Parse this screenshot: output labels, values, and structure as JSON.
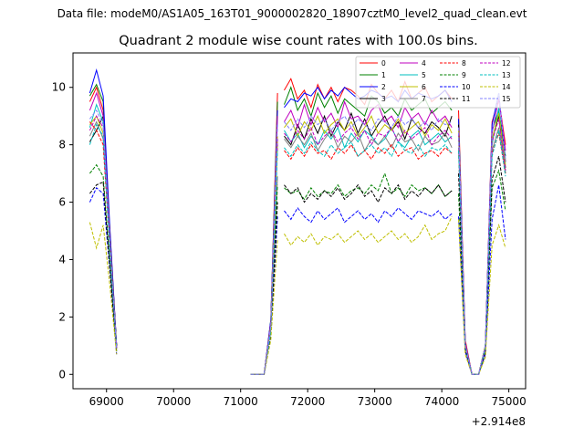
{
  "chart_data": {
    "type": "line",
    "suptitle": "Data file: modeM0/AS1A05_163T01_9000002820_18907cztM0_level2_quad_clean.evt",
    "title": "Quadrant 2 module wise count rates with 100.0s bins.",
    "xlabel": "",
    "ylabel": "",
    "x_offset_label": "+2.914e8",
    "xlim": [
      68500,
      75250
    ],
    "ylim": [
      -0.5,
      11.2
    ],
    "xticks": [
      69000,
      70000,
      71000,
      72000,
      73000,
      74000,
      75000
    ],
    "yticks": [
      0,
      2,
      4,
      6,
      8,
      10
    ],
    "grid": false,
    "legend_position": "top-right",
    "segments": [
      {
        "start": 68750,
        "step": 100,
        "count": 5
      },
      {
        "start": 71150,
        "step": 100,
        "count": 5
      },
      {
        "start": 71650,
        "step": 100,
        "count": 26
      },
      {
        "start": 74250,
        "step": 100,
        "count": 8
      }
    ],
    "series": [
      {
        "name": "0",
        "color": "#ff0000",
        "dash": "solid",
        "segments": [
          [
            9.5,
            10.0,
            9.2,
            5.0,
            1.0
          ],
          [
            0.0,
            0.0,
            0.0,
            1.8,
            9.8
          ],
          [
            9.9,
            10.3,
            9.6,
            9.9,
            9.3,
            10.1,
            9.6,
            10.0,
            9.5,
            10.0,
            9.9,
            9.7,
            9.4,
            10.1,
            9.8,
            9.6,
            9.9,
            9.5,
            10.2,
            9.6,
            9.8,
            10.0,
            9.5,
            9.7,
            9.9,
            9.6
          ],
          [
            9.2,
            1.2,
            0.0,
            0.0,
            1.0,
            8.8,
            9.6,
            8.0
          ]
        ]
      },
      {
        "name": "1",
        "color": "#008000",
        "dash": "solid",
        "segments": [
          [
            9.7,
            10.1,
            9.5,
            4.9,
            1.0
          ],
          [
            0.0,
            0.0,
            0.0,
            1.9,
            9.5
          ],
          [
            9.4,
            10.0,
            9.2,
            9.6,
            9.0,
            9.8,
            9.3,
            9.7,
            9.1,
            9.6,
            9.4,
            9.2,
            9.0,
            9.7,
            9.5,
            9.1,
            9.3,
            9.0,
            9.6,
            9.2,
            9.4,
            9.6,
            9.1,
            9.3,
            9.5,
            9.2
          ],
          [
            8.9,
            1.1,
            0.0,
            0.0,
            1.0,
            8.5,
            9.2,
            7.6
          ]
        ]
      },
      {
        "name": "2",
        "color": "#0000ff",
        "dash": "solid",
        "segments": [
          [
            9.8,
            10.6,
            9.7,
            5.1,
            1.0
          ],
          [
            0.0,
            0.0,
            0.0,
            1.9,
            9.2
          ],
          [
            9.3,
            9.6,
            9.5,
            9.8,
            9.7,
            10.0,
            9.6,
            9.9,
            9.7,
            10.0,
            9.8,
            9.6,
            9.7,
            9.9,
            9.8,
            9.6,
            9.7,
            9.5,
            9.9,
            9.6,
            9.8,
            9.7,
            9.6,
            9.7,
            9.9,
            9.5
          ],
          [
            8.9,
            1.1,
            0.0,
            0.0,
            1.0,
            8.7,
            9.8,
            7.4
          ]
        ]
      },
      {
        "name": "3",
        "color": "#000000",
        "dash": "solid",
        "segments": [
          [
            8.1,
            8.5,
            9.0,
            4.8,
            1.0
          ],
          [
            0.0,
            0.0,
            0.0,
            1.7,
            8.2
          ],
          [
            8.3,
            8.0,
            8.7,
            8.2,
            8.9,
            8.4,
            9.0,
            8.3,
            8.8,
            8.5,
            9.1,
            8.4,
            8.9,
            8.3,
            8.7,
            9.0,
            8.5,
            8.8,
            8.2,
            8.9,
            8.6,
            8.4,
            8.8,
            8.6,
            8.3,
            9.0
          ],
          [
            8.7,
            1.0,
            0.0,
            0.0,
            1.0,
            8.2,
            9.0,
            7.2
          ]
        ]
      },
      {
        "name": "4",
        "color": "#bf00bf",
        "dash": "solid",
        "segments": [
          [
            9.2,
            9.8,
            9.0,
            4.7,
            0.9
          ],
          [
            0.0,
            0.0,
            0.0,
            1.8,
            9.0
          ],
          [
            8.8,
            9.2,
            8.6,
            9.4,
            8.7,
            9.3,
            8.8,
            9.1,
            8.6,
            9.5,
            8.9,
            9.0,
            8.7,
            9.2,
            9.4,
            8.8,
            9.0,
            8.6,
            9.3,
            8.9,
            9.1,
            8.7,
            9.2,
            8.8,
            9.0,
            8.6
          ],
          [
            8.6,
            1.1,
            0.0,
            0.0,
            1.0,
            8.4,
            9.6,
            7.8
          ]
        ]
      },
      {
        "name": "5",
        "color": "#00bfbf",
        "dash": "solid",
        "segments": [
          [
            8.6,
            9.4,
            8.8,
            4.5,
            0.9
          ],
          [
            0.0,
            0.0,
            0.0,
            1.6,
            8.0
          ],
          [
            8.5,
            8.1,
            8.4,
            7.9,
            8.3,
            8.0,
            8.5,
            8.2,
            8.6,
            7.9,
            8.4,
            8.1,
            8.5,
            8.3,
            8.0,
            8.2,
            8.6,
            8.1,
            7.9,
            8.3,
            8.5,
            8.0,
            8.2,
            8.4,
            8.1,
            8.3
          ],
          [
            8.3,
            1.0,
            0.0,
            0.0,
            0.9,
            8.0,
            9.3,
            7.0
          ]
        ]
      },
      {
        "name": "6",
        "color": "#bfbf00",
        "dash": "solid",
        "segments": [
          [
            8.7,
            9.0,
            8.4,
            4.6,
            0.9
          ],
          [
            0.0,
            0.0,
            0.0,
            1.7,
            8.3
          ],
          [
            8.6,
            8.9,
            8.3,
            8.8,
            8.5,
            9.0,
            8.4,
            8.7,
            8.9,
            8.5,
            8.8,
            8.3,
            8.6,
            9.0,
            8.4,
            8.7,
            8.5,
            8.9,
            8.4,
            8.6,
            8.8,
            8.3,
            8.7,
            8.5,
            8.9,
            8.4
          ],
          [
            8.5,
            1.0,
            0.0,
            0.0,
            1.0,
            8.2,
            9.1,
            7.3
          ]
        ]
      },
      {
        "name": "7",
        "color": "#808080",
        "dash": "solid",
        "segments": [
          [
            8.3,
            8.8,
            8.2,
            4.4,
            0.9
          ],
          [
            0.0,
            0.0,
            0.0,
            1.6,
            6.9
          ],
          [
            8.2,
            7.9,
            8.3,
            8.0,
            8.4,
            7.8,
            8.2,
            8.5,
            7.9,
            8.3,
            8.1,
            8.4,
            7.8,
            8.2,
            8.0,
            8.3,
            7.9,
            8.4,
            8.1,
            8.2,
            7.8,
            8.3,
            8.0,
            8.1,
            8.4,
            7.9
          ],
          [
            7.9,
            1.0,
            0.0,
            0.0,
            0.9,
            7.8,
            8.6,
            7.1
          ]
        ]
      },
      {
        "name": "8",
        "color": "#ff0000",
        "dash": "dashed",
        "segments": [
          [
            8.8,
            8.5,
            8.0,
            4.4,
            0.9
          ],
          [
            0.0,
            0.0,
            0.0,
            1.6,
            8.0
          ],
          [
            7.8,
            7.5,
            7.9,
            7.6,
            8.0,
            7.7,
            7.8,
            7.5,
            7.9,
            7.7,
            8.0,
            7.6,
            7.8,
            7.5,
            7.9,
            7.7,
            8.0,
            7.6,
            7.8,
            7.9,
            7.5,
            7.7,
            7.8,
            7.6,
            7.9,
            7.7
          ],
          [
            7.8,
            1.0,
            0.0,
            0.0,
            0.9,
            7.7,
            8.4,
            7.0
          ]
        ]
      },
      {
        "name": "9",
        "color": "#008000",
        "dash": "dashed",
        "segments": [
          [
            7.0,
            7.3,
            6.9,
            3.9,
            0.8
          ],
          [
            0.0,
            0.0,
            0.0,
            1.4,
            6.6
          ],
          [
            6.5,
            6.3,
            6.4,
            6.1,
            6.5,
            6.2,
            6.4,
            6.3,
            6.6,
            6.2,
            6.4,
            6.5,
            6.3,
            6.6,
            6.4,
            7.0,
            6.3,
            6.5,
            6.2,
            6.6,
            6.4,
            6.5,
            6.3,
            6.6,
            6.2,
            6.4
          ],
          [
            6.3,
            0.9,
            0.0,
            0.0,
            0.8,
            6.5,
            7.1,
            5.7
          ]
        ]
      },
      {
        "name": "10",
        "color": "#0000ff",
        "dash": "dashed",
        "segments": [
          [
            6.0,
            6.5,
            6.3,
            3.6,
            0.7
          ],
          [
            0.0,
            0.0,
            0.0,
            1.3,
            5.5
          ],
          [
            5.7,
            5.4,
            5.8,
            5.5,
            5.3,
            5.7,
            5.4,
            5.6,
            5.8,
            5.3,
            5.5,
            5.7,
            5.4,
            5.6,
            5.3,
            5.7,
            5.5,
            5.8,
            5.6,
            5.4,
            5.7,
            5.6,
            5.5,
            5.7,
            5.4,
            5.6
          ],
          [
            5.5,
            0.8,
            0.0,
            0.0,
            0.7,
            5.4,
            6.6,
            4.7
          ]
        ]
      },
      {
        "name": "11",
        "color": "#000000",
        "dash": "dashed",
        "segments": [
          [
            6.3,
            6.6,
            6.7,
            3.7,
            0.8
          ],
          [
            0.0,
            0.0,
            0.0,
            1.4,
            6.0
          ],
          [
            6.6,
            6.3,
            6.5,
            6.0,
            6.3,
            6.1,
            6.4,
            6.2,
            6.5,
            6.1,
            6.3,
            6.6,
            6.2,
            6.4,
            6.0,
            6.5,
            6.3,
            6.6,
            6.1,
            6.4,
            6.2,
            6.5,
            6.3,
            6.6,
            6.2,
            6.4
          ],
          [
            7.0,
            0.9,
            0.0,
            0.0,
            0.8,
            6.8,
            7.6,
            6.0
          ]
        ]
      },
      {
        "name": "12",
        "color": "#bf00bf",
        "dash": "dashed",
        "segments": [
          [
            8.5,
            9.0,
            8.6,
            4.5,
            0.9
          ],
          [
            0.0,
            0.0,
            0.0,
            1.6,
            8.2
          ],
          [
            8.4,
            8.1,
            8.5,
            8.2,
            8.6,
            8.0,
            8.3,
            8.5,
            8.1,
            8.4,
            8.6,
            8.2,
            8.5,
            8.0,
            8.4,
            8.3,
            8.6,
            8.1,
            8.5,
            8.2,
            8.4,
            8.6,
            8.0,
            8.3,
            8.5,
            8.2
          ],
          [
            8.4,
            1.0,
            0.0,
            0.0,
            0.9,
            8.1,
            8.9,
            7.1
          ]
        ]
      },
      {
        "name": "13",
        "color": "#00bfbf",
        "dash": "dashed",
        "segments": [
          [
            8.0,
            8.7,
            8.3,
            4.3,
            0.9
          ],
          [
            0.0,
            0.0,
            0.0,
            1.5,
            7.8
          ],
          [
            7.9,
            7.6,
            8.0,
            7.7,
            8.1,
            7.8,
            7.6,
            8.0,
            7.7,
            7.9,
            8.1,
            7.6,
            7.8,
            8.0,
            7.7,
            7.9,
            7.6,
            8.1,
            7.8,
            7.7,
            8.0,
            7.6,
            7.9,
            7.8,
            8.0,
            7.7
          ],
          [
            7.8,
            1.0,
            0.0,
            0.0,
            0.9,
            7.6,
            8.5,
            6.9
          ]
        ]
      },
      {
        "name": "14",
        "color": "#bfbf00",
        "dash": "dashed",
        "segments": [
          [
            5.3,
            4.4,
            5.2,
            3.1,
            0.7
          ],
          [
            0.0,
            0.0,
            0.0,
            1.2,
            4.7
          ],
          [
            4.9,
            4.5,
            4.8,
            4.6,
            4.9,
            4.5,
            4.8,
            4.7,
            4.9,
            4.6,
            4.8,
            5.0,
            4.7,
            4.9,
            4.6,
            4.8,
            5.0,
            4.7,
            4.9,
            4.6,
            4.8,
            5.2,
            4.7,
            4.9,
            5.0,
            5.5
          ],
          [
            5.4,
            0.7,
            0.0,
            0.0,
            0.6,
            4.5,
            5.2,
            4.4
          ]
        ]
      },
      {
        "name": "15",
        "color": "#8080ff",
        "dash": "dashed",
        "segments": [
          [
            8.9,
            9.2,
            8.7,
            4.6,
            0.9
          ],
          [
            0.0,
            0.0,
            0.0,
            1.7,
            8.7
          ],
          [
            8.8,
            8.5,
            8.9,
            8.6,
            9.0,
            8.7,
            8.9,
            8.5,
            8.8,
            9.0,
            8.6,
            8.9,
            8.7,
            8.5,
            8.9,
            8.8,
            8.6,
            9.0,
            8.7,
            8.9,
            8.6,
            8.8,
            8.5,
            8.9,
            8.7,
            8.8
          ],
          [
            8.6,
            1.0,
            0.0,
            0.0,
            1.0,
            8.4,
            9.8,
            7.5
          ]
        ]
      }
    ]
  }
}
